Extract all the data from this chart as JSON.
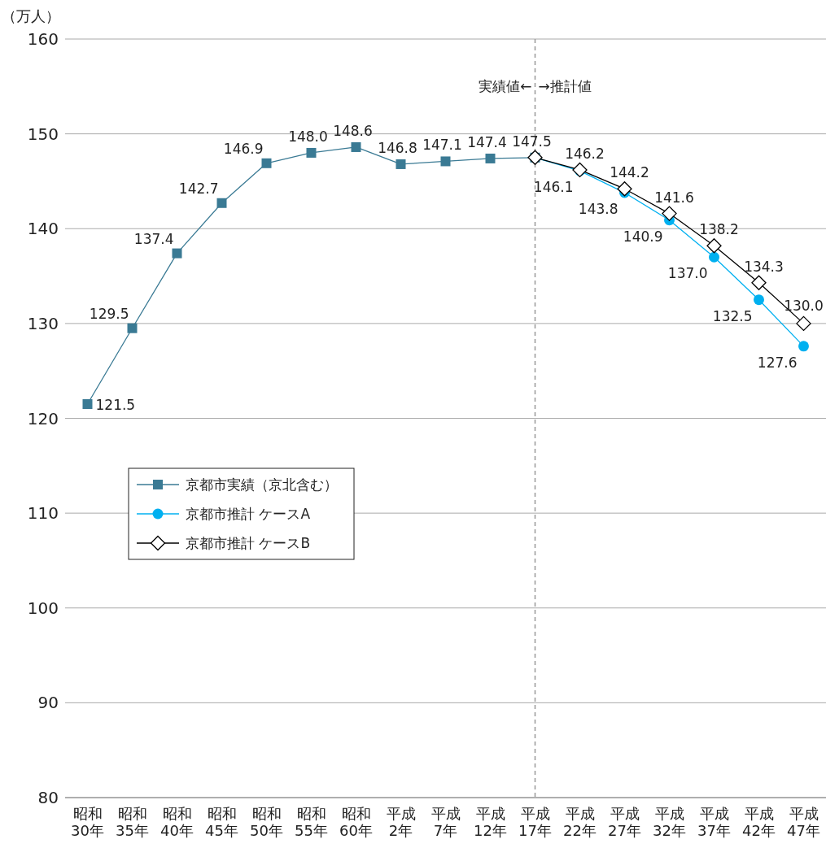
{
  "chart_data": {
    "type": "line",
    "ylabel": "（万人）",
    "categories": [
      "昭和\n30年",
      "昭和\n35年",
      "昭和\n40年",
      "昭和\n45年",
      "昭和\n50年",
      "昭和\n55年",
      "昭和\n60年",
      "平成\n2年",
      "平成\n7年",
      "平成\n12年",
      "平成\n17年",
      "平成\n22年",
      "平成\n27年",
      "平成\n32年",
      "平成\n37年",
      "平成\n42年",
      "平成\n47年"
    ],
    "series": [
      {
        "name": "京都市実績（京北含む）",
        "color": "#3a7a94",
        "marker": "square",
        "values": [
          121.5,
          129.5,
          137.4,
          142.7,
          146.9,
          148.0,
          148.6,
          146.8,
          147.1,
          147.4,
          147.5,
          null,
          null,
          null,
          null,
          null,
          null
        ],
        "value_labels": [
          "121.5",
          "129.5",
          "137.4",
          "142.7",
          "146.9",
          "148.0",
          "148.6",
          "146.8",
          "147.1",
          "147.4",
          "147.5",
          null,
          null,
          null,
          null,
          null,
          null
        ]
      },
      {
        "name": "京都市推計 ケースA",
        "color": "#00b0f0",
        "marker": "circle",
        "values": [
          null,
          null,
          null,
          null,
          null,
          null,
          null,
          null,
          null,
          null,
          147.5,
          146.1,
          143.8,
          140.9,
          137.0,
          132.5,
          127.6
        ],
        "value_labels": [
          null,
          null,
          null,
          null,
          null,
          null,
          null,
          null,
          null,
          null,
          null,
          "146.1",
          "143.8",
          "140.9",
          "137.0",
          "132.5",
          "127.6"
        ]
      },
      {
        "name": "京都市推計 ケースB",
        "color": "#000000",
        "marker": "diamond",
        "values": [
          null,
          null,
          null,
          null,
          null,
          null,
          null,
          null,
          null,
          null,
          147.5,
          146.2,
          144.2,
          141.6,
          138.2,
          134.3,
          130.0
        ],
        "value_labels": [
          null,
          null,
          null,
          null,
          null,
          null,
          null,
          null,
          null,
          null,
          null,
          "146.2",
          "144.2",
          "141.6",
          "138.2",
          "134.3",
          "130.0"
        ]
      }
    ],
    "ylim": [
      80,
      160
    ],
    "yticks": [
      80,
      90,
      100,
      110,
      120,
      130,
      140,
      150,
      160
    ],
    "grid": "y",
    "legend": "left",
    "ref_lines": [
      {
        "axis": "x",
        "value": "平成\n17年",
        "color": "#999999",
        "line_style": "dashed"
      }
    ],
    "annotations": [
      "実績値←",
      "→推計値"
    ]
  }
}
